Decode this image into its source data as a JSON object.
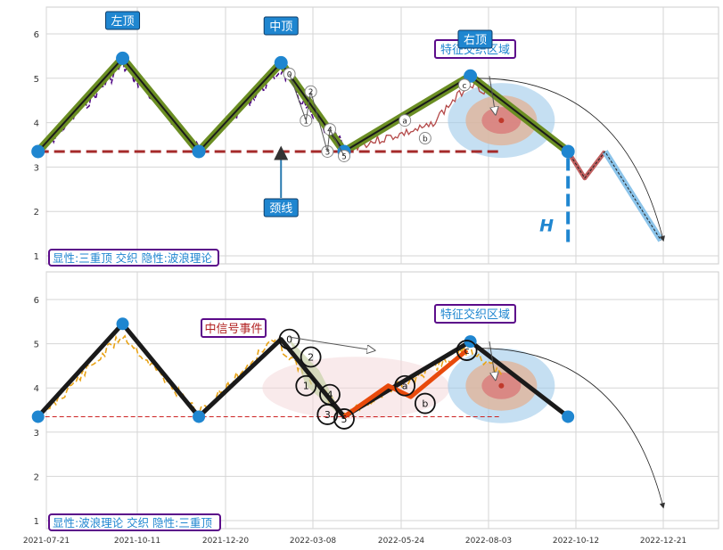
{
  "x_ticks": [
    "2021-07-21",
    "2021-10-11",
    "2021-12-20",
    "2022-03-08",
    "2022-05-24",
    "2022-08-03",
    "2022-10-12",
    "2022-12-21"
  ],
  "y_ticks": [
    "1",
    "2",
    "3",
    "4",
    "5",
    "6"
  ],
  "colors": {
    "peak_blue": "#1f86d0",
    "olive": "#6b8e23",
    "black": "#1a1a1a",
    "purple": "#4b0082",
    "orange_price": "#e8a317",
    "neckline": "#a52a2a",
    "wave_orange": "#e84a0c",
    "label_bg": "#1f86d0",
    "legend_border": "#5b0b8a",
    "legend_text": "#1f86d0",
    "event_text": "#b22222"
  },
  "top": {
    "labels": {
      "left_top": "左顶",
      "mid_top": "中顶",
      "right_top": "右顶",
      "neckline": "颈线",
      "region": "特征交织区域",
      "h": "H"
    },
    "legend": "显性:三重顶 交织 隐性:波浪理论",
    "wave_labels": [
      "0",
      "1",
      "2",
      "3",
      "4",
      "5",
      "a",
      "b",
      "c"
    ]
  },
  "bottom": {
    "labels": {
      "event": "中信号事件",
      "region": "特征交织区域"
    },
    "legend": "显性:波浪理论 交织 隐性:三重顶",
    "wave_labels": [
      "0",
      "1",
      "2",
      "3",
      "4",
      "5",
      "a",
      "b",
      "c"
    ]
  },
  "chart_data": [
    {
      "type": "line",
      "panel": "top",
      "ylim": [
        0.85,
        6.6
      ],
      "x_ticks": [
        "2021-07-21",
        "2021-10-11",
        "2021-12-20",
        "2022-03-08",
        "2022-05-24",
        "2022-08-03",
        "2022-10-12",
        "2022-12-21"
      ],
      "series": [
        {
          "values": [
            [
              "2021-08-01",
              3.35
            ],
            [
              "2021-10-11",
              5.45
            ],
            [
              "2021-12-14",
              3.35
            ],
            [
              "2022-02-21",
              5.35
            ],
            [
              "2022-04-15",
              3.35
            ],
            [
              "2022-07-30",
              5.05
            ],
            [
              "2022-10-20",
              3.35
            ]
          ]
        },
        {
          "values": [
            [
              "2022-10-20",
              3.35
            ],
            [
              "2022-11-03",
              2.75
            ],
            [
              "2022-11-20",
              3.35
            ],
            [
              "2023-01-06",
              1.35
            ]
          ]
        }
      ],
      "neckline": 3.35
    },
    {
      "type": "line",
      "panel": "bottom",
      "ylim": [
        0.85,
        6.6
      ],
      "series": [
        {
          "values": [
            [
              "2021-08-01",
              3.35
            ],
            [
              "2021-10-11",
              5.45
            ],
            [
              "2021-12-14",
              3.35
            ],
            [
              "2022-02-21",
              5.1
            ],
            [
              "2022-04-15",
              3.35
            ],
            [
              "2022-07-30",
              5.05
            ],
            [
              "2022-10-20",
              3.35
            ]
          ]
        },
        {
          "values": [
            [
              "2022-04-15",
              3.35
            ],
            [
              "2022-05-22",
              4.05
            ],
            [
              "2022-06-10",
              3.8
            ],
            [
              "2022-07-27",
              4.85
            ]
          ]
        }
      ]
    }
  ]
}
